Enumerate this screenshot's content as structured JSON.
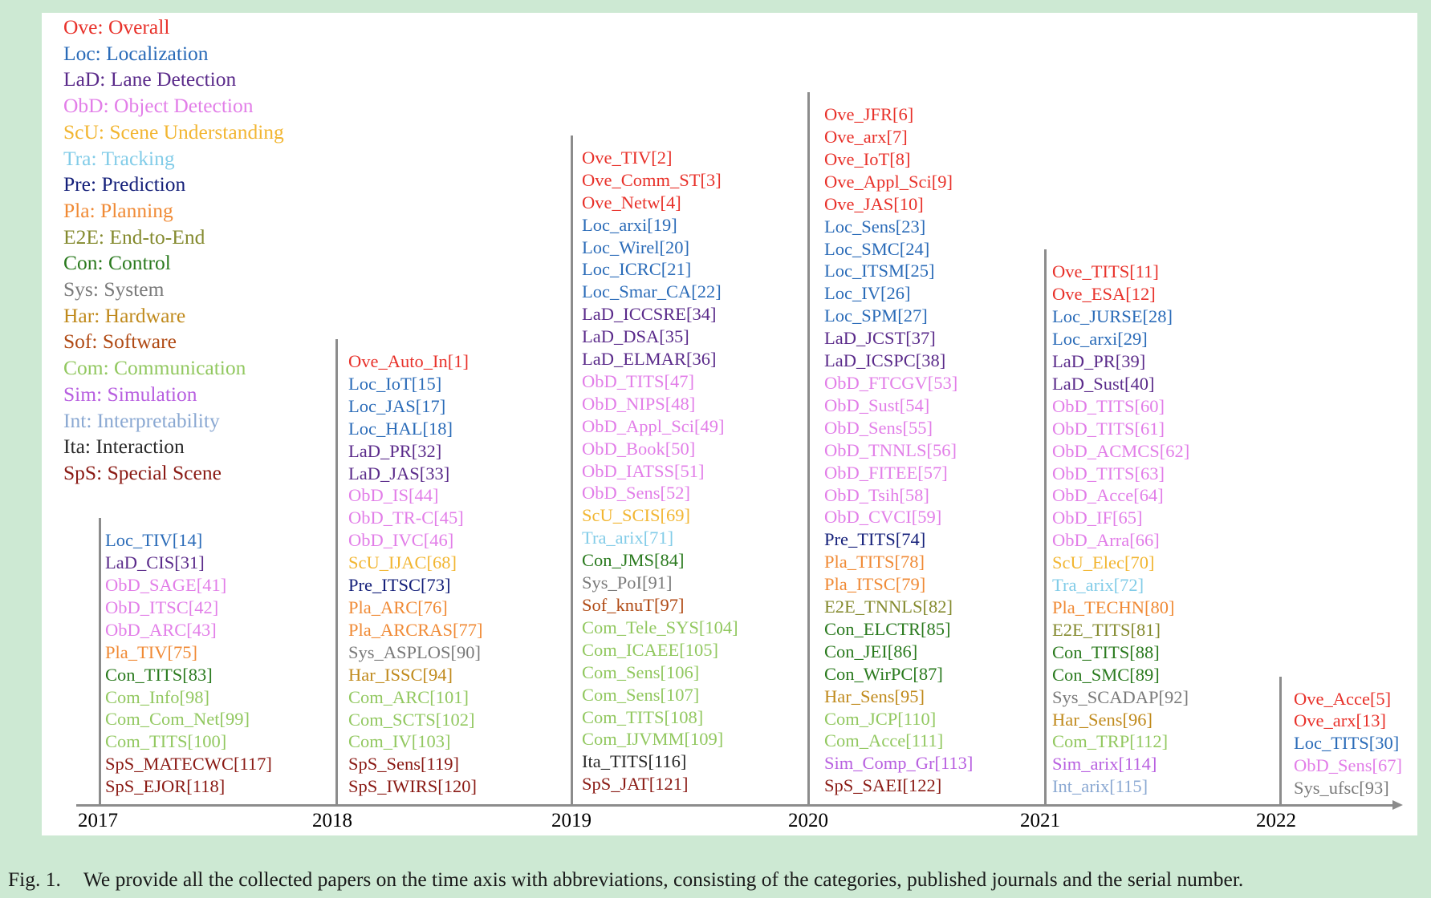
{
  "colors": {
    "Ove": "#e8312a",
    "Loc": "#2a6bb8",
    "LaD": "#5a2a8a",
    "ObD": "#e27ee8",
    "ScU": "#f2b632",
    "Tra": "#82cce8",
    "Pre": "#15207a",
    "Pla": "#f08a35",
    "E2E": "#848a2e",
    "Con": "#2a7a1e",
    "Sys": "#7a7a7a",
    "Har": "#c08a1c",
    "Sof": "#b04a14",
    "Com": "#92c860",
    "Sim": "#b860e0",
    "Int": "#8aa8d2",
    "Ita": "#2a2a2a",
    "SpS": "#8a1a14"
  },
  "legend": [
    {
      "key": "Ove",
      "text": "Ove: Overall"
    },
    {
      "key": "Loc",
      "text": "Loc: Localization"
    },
    {
      "key": "LaD",
      "text": "LaD: Lane Detection"
    },
    {
      "key": "ObD",
      "text": "ObD: Object Detection"
    },
    {
      "key": "ScU",
      "text": "ScU: Scene Understanding"
    },
    {
      "key": "Tra",
      "text": "Tra: Tracking"
    },
    {
      "key": "Pre",
      "text": "Pre: Prediction"
    },
    {
      "key": "Pla",
      "text": "Pla: Planning"
    },
    {
      "key": "E2E",
      "text": "E2E: End-to-End"
    },
    {
      "key": "Con",
      "text": "Con: Control"
    },
    {
      "key": "Sys",
      "text": "Sys: System"
    },
    {
      "key": "Har",
      "text": "Har: Hardware"
    },
    {
      "key": "Sof",
      "text": "Sof: Software"
    },
    {
      "key": "Com",
      "text": "Com: Communication"
    },
    {
      "key": "Sim",
      "text": "Sim: Simulation"
    },
    {
      "key": "Int",
      "text": "Int: Interpretability"
    },
    {
      "key": "Ita",
      "text": "Ita: Interaction"
    },
    {
      "key": "SpS",
      "text": "SpS: Special Scene"
    }
  ],
  "years": [
    {
      "year": "2017",
      "entries": [
        {
          "key": "Loc",
          "text": "Loc_TIV[14]"
        },
        {
          "key": "LaD",
          "text": "LaD_CIS[31]"
        },
        {
          "key": "ObD",
          "text": "ObD_SAGE[41]"
        },
        {
          "key": "ObD",
          "text": "ObD_ITSC[42]"
        },
        {
          "key": "ObD",
          "text": "ObD_ARC[43]"
        },
        {
          "key": "Pla",
          "text": "Pla_TIV[75]"
        },
        {
          "key": "Con",
          "text": "Con_TITS[83]"
        },
        {
          "key": "Com",
          "text": "Com_Info[98]"
        },
        {
          "key": "Com",
          "text": "Com_Com_Net[99]"
        },
        {
          "key": "Com",
          "text": "Com_TITS[100]"
        },
        {
          "key": "SpS",
          "text": "SpS_MATECWC[117]"
        },
        {
          "key": "SpS",
          "text": "SpS_EJOR[118]"
        }
      ]
    },
    {
      "year": "2018",
      "entries": [
        {
          "key": "Ove",
          "text": "Ove_Auto_In[1]"
        },
        {
          "key": "Loc",
          "text": "Loc_IoT[15]"
        },
        {
          "key": "Loc",
          "text": "Loc_JAS[17]"
        },
        {
          "key": "Loc",
          "text": "Loc_HAL[18]"
        },
        {
          "key": "LaD",
          "text": "LaD_PR[32]"
        },
        {
          "key": "LaD",
          "text": "LaD_JAS[33]"
        },
        {
          "key": "ObD",
          "text": "ObD_IS[44]"
        },
        {
          "key": "ObD",
          "text": "ObD_TR-C[45]"
        },
        {
          "key": "ObD",
          "text": "ObD_IVC[46]"
        },
        {
          "key": "ScU",
          "text": "ScU_IJAC[68]"
        },
        {
          "key": "Pre",
          "text": "Pre_ITSC[73]"
        },
        {
          "key": "Pla",
          "text": "Pla_ARC[76]"
        },
        {
          "key": "Pla",
          "text": "Pla_ARCRAS[77]"
        },
        {
          "key": "Sys",
          "text": "Sys_ASPLOS[90]"
        },
        {
          "key": "Har",
          "text": "Har_ISSC[94]"
        },
        {
          "key": "Com",
          "text": "Com_ARC[101]"
        },
        {
          "key": "Com",
          "text": "Com_SCTS[102]"
        },
        {
          "key": "Com",
          "text": "Com_IV[103]"
        },
        {
          "key": "SpS",
          "text": "SpS_Sens[119]"
        },
        {
          "key": "SpS",
          "text": "SpS_IWIRS[120]"
        }
      ]
    },
    {
      "year": "2019",
      "entries": [
        {
          "key": "Ove",
          "text": "Ove_TIV[2]"
        },
        {
          "key": "Ove",
          "text": "Ove_Comm_ST[3]"
        },
        {
          "key": "Ove",
          "text": "Ove_Netw[4]"
        },
        {
          "key": "Loc",
          "text": "Loc_arxi[19]"
        },
        {
          "key": "Loc",
          "text": "Loc_Wirel[20]"
        },
        {
          "key": "Loc",
          "text": "Loc_ICRC[21]"
        },
        {
          "key": "Loc",
          "text": "Loc_Smar_CA[22]"
        },
        {
          "key": "LaD",
          "text": "LaD_ICCSRE[34]"
        },
        {
          "key": "LaD",
          "text": "LaD_DSA[35]"
        },
        {
          "key": "LaD",
          "text": "LaD_ELMAR[36]"
        },
        {
          "key": "ObD",
          "text": "ObD_TITS[47]"
        },
        {
          "key": "ObD",
          "text": "ObD_NIPS[48]"
        },
        {
          "key": "ObD",
          "text": "ObD_Appl_Sci[49]"
        },
        {
          "key": "ObD",
          "text": "ObD_Book[50]"
        },
        {
          "key": "ObD",
          "text": "ObD_IATSS[51]"
        },
        {
          "key": "ObD",
          "text": "ObD_Sens[52]"
        },
        {
          "key": "ScU",
          "text": "ScU_SCIS[69]"
        },
        {
          "key": "Tra",
          "text": "Tra_arix[71]"
        },
        {
          "key": "Con",
          "text": "Con_JMS[84]"
        },
        {
          "key": "Sys",
          "text": "Sys_PoI[91]"
        },
        {
          "key": "Sof",
          "text": "Sof_knuT[97]"
        },
        {
          "key": "Com",
          "text": "Com_Tele_SYS[104]"
        },
        {
          "key": "Com",
          "text": "Com_ICAEE[105]"
        },
        {
          "key": "Com",
          "text": "Com_Sens[106]"
        },
        {
          "key": "Com",
          "text": "Com_Sens[107]"
        },
        {
          "key": "Com",
          "text": "Com_TITS[108]"
        },
        {
          "key": "Com",
          "text": "Com_IJVMM[109]"
        },
        {
          "key": "Ita",
          "text": "Ita_TITS[116]"
        },
        {
          "key": "SpS",
          "text": "SpS_JAT[121]"
        }
      ]
    },
    {
      "year": "2020",
      "entries": [
        {
          "key": "Ove",
          "text": "Ove_JFR[6]"
        },
        {
          "key": "Ove",
          "text": "Ove_arx[7]"
        },
        {
          "key": "Ove",
          "text": "Ove_IoT[8]"
        },
        {
          "key": "Ove",
          "text": "Ove_Appl_Sci[9]"
        },
        {
          "key": "Ove",
          "text": "Ove_JAS[10]"
        },
        {
          "key": "Loc",
          "text": "Loc_Sens[23]"
        },
        {
          "key": "Loc",
          "text": "Loc_SMC[24]"
        },
        {
          "key": "Loc",
          "text": "Loc_ITSM[25]"
        },
        {
          "key": "Loc",
          "text": "Loc_IV[26]"
        },
        {
          "key": "Loc",
          "text": "Loc_SPM[27]"
        },
        {
          "key": "LaD",
          "text": "LaD_JCST[37]"
        },
        {
          "key": "LaD",
          "text": "LaD_ICSPC[38]"
        },
        {
          "key": "ObD",
          "text": "ObD_FTCGV[53]"
        },
        {
          "key": "ObD",
          "text": "ObD_Sust[54]"
        },
        {
          "key": "ObD",
          "text": "ObD_Sens[55]"
        },
        {
          "key": "ObD",
          "text": "ObD_TNNLS[56]"
        },
        {
          "key": "ObD",
          "text": "ObD_FITEE[57]"
        },
        {
          "key": "ObD",
          "text": "ObD_Tsih[58]"
        },
        {
          "key": "ObD",
          "text": "ObD_CVCI[59]"
        },
        {
          "key": "Pre",
          "text": "Pre_TITS[74]"
        },
        {
          "key": "Pla",
          "text": "Pla_TITS[78]"
        },
        {
          "key": "Pla",
          "text": "Pla_ITSC[79]"
        },
        {
          "key": "E2E",
          "text": "E2E_TNNLS[82]"
        },
        {
          "key": "Con",
          "text": "Con_ELCTR[85]"
        },
        {
          "key": "Con",
          "text": "Con_JEI[86]"
        },
        {
          "key": "Con",
          "text": "Con_WirPC[87]"
        },
        {
          "key": "Har",
          "text": "Har_Sens[95]"
        },
        {
          "key": "Com",
          "text": "Com_JCP[110]"
        },
        {
          "key": "Com",
          "text": "Com_Acce[111]"
        },
        {
          "key": "Sim",
          "text": "Sim_Comp_Gr[113]"
        },
        {
          "key": "SpS",
          "text": "SpS_SAEI[122]"
        }
      ]
    },
    {
      "year": "2021",
      "entries": [
        {
          "key": "Ove",
          "text": "Ove_TITS[11]"
        },
        {
          "key": "Ove",
          "text": "Ove_ESA[12]"
        },
        {
          "key": "Loc",
          "text": "Loc_JURSE[28]"
        },
        {
          "key": "Loc",
          "text": "Loc_arxi[29]"
        },
        {
          "key": "LaD",
          "text": "LaD_PR[39]"
        },
        {
          "key": "LaD",
          "text": "LaD_Sust[40]"
        },
        {
          "key": "ObD",
          "text": "ObD_TITS[60]"
        },
        {
          "key": "ObD",
          "text": "ObD_TITS[61]"
        },
        {
          "key": "ObD",
          "text": "ObD_ACMCS[62]"
        },
        {
          "key": "ObD",
          "text": "ObD_TITS[63]"
        },
        {
          "key": "ObD",
          "text": "ObD_Acce[64]"
        },
        {
          "key": "ObD",
          "text": "ObD_IF[65]"
        },
        {
          "key": "ObD",
          "text": "ObD_Arra[66]"
        },
        {
          "key": "ScU",
          "text": "ScU_Elec[70]"
        },
        {
          "key": "Tra",
          "text": "Tra_arix[72]"
        },
        {
          "key": "Pla",
          "text": "Pla_TECHN[80]"
        },
        {
          "key": "E2E",
          "text": "E2E_TITS[81]"
        },
        {
          "key": "Con",
          "text": "Con_TITS[88]"
        },
        {
          "key": "Con",
          "text": "Con_SMC[89]"
        },
        {
          "key": "Sys",
          "text": "Sys_SCADAP[92]"
        },
        {
          "key": "Har",
          "text": "Har_Sens[96]"
        },
        {
          "key": "Com",
          "text": "Com_TRP[112]"
        },
        {
          "key": "Sim",
          "text": "Sim_arix[114]"
        },
        {
          "key": "Int",
          "text": "Int_arix[115]"
        }
      ]
    },
    {
      "year": "2022",
      "entries": [
        {
          "key": "Ove",
          "text": "Ove_Acce[5]"
        },
        {
          "key": "Ove",
          "text": "Ove_arx[13]"
        },
        {
          "key": "Loc",
          "text": "Loc_TITS[30]"
        },
        {
          "key": "ObD",
          "text": "ObD_Sens[67]"
        },
        {
          "key": "Sys",
          "text": "Sys_ufsc[93]"
        }
      ]
    }
  ],
  "caption": {
    "label": "Fig. 1.",
    "text": "We provide all the collected papers on the time axis with abbreviations, consisting of the categories, published journals and the serial number."
  }
}
